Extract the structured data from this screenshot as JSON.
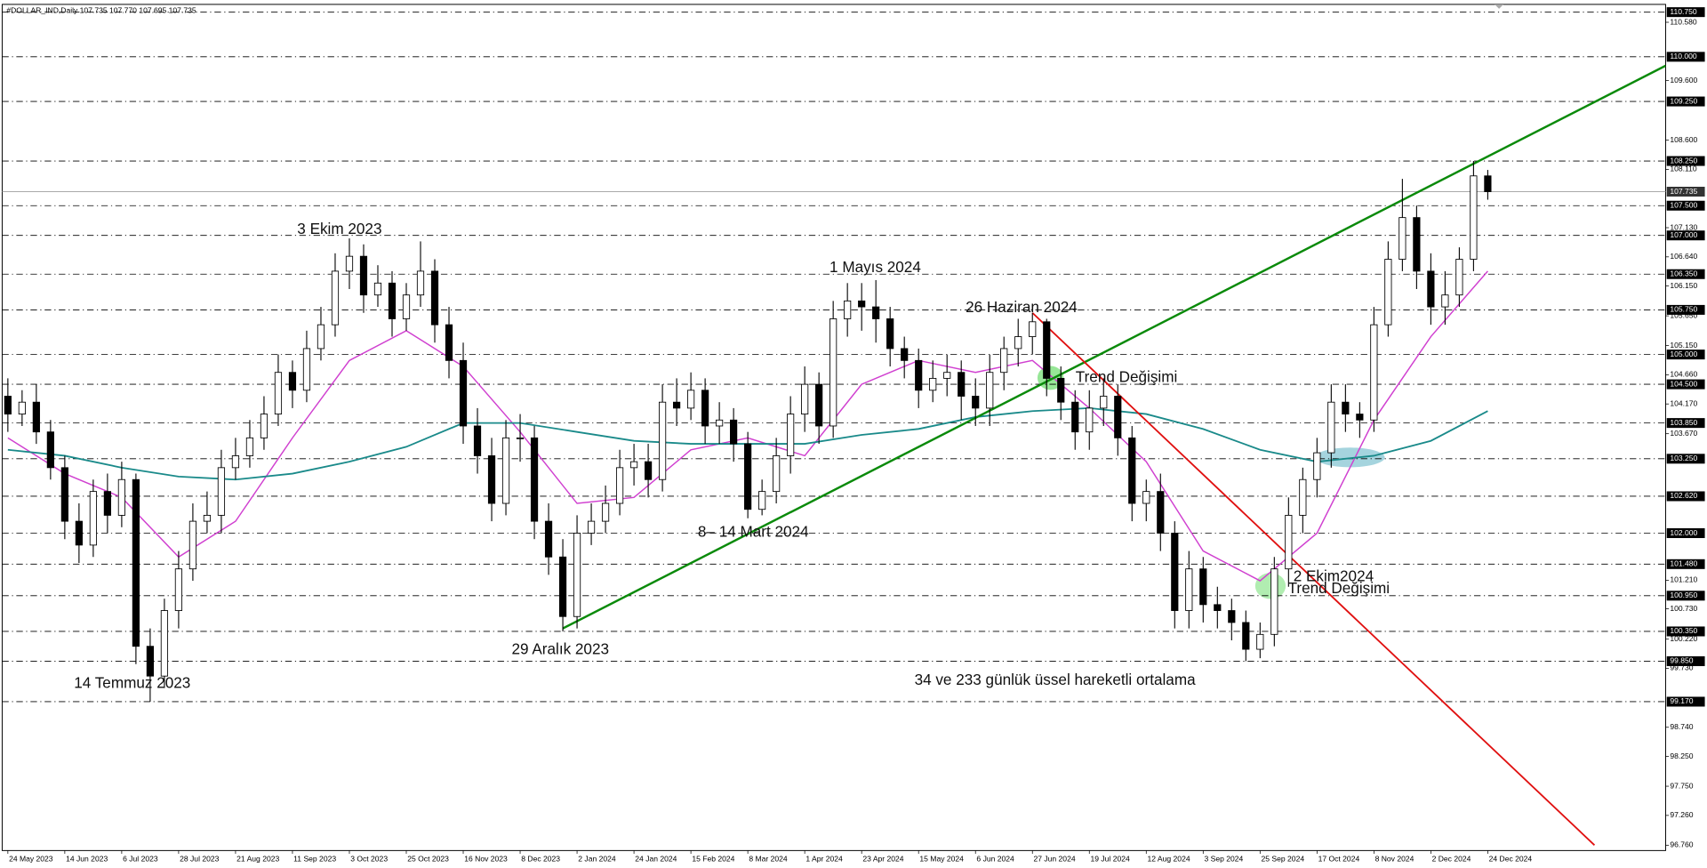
{
  "chart_data": {
    "type": "candlestick",
    "title": "#DOLLAR_IND,Daily  107.735 107.770 107.695 107.735",
    "xlim": [
      -0.4,
      116.5
    ],
    "ylim": [
      96.67,
      110.88
    ],
    "xticks": [
      {
        "value": 0,
        "label": "24 May 2023"
      },
      {
        "value": 4,
        "label": "14 Jun 2023"
      },
      {
        "value": 8,
        "label": "6 Jul 2023"
      },
      {
        "value": 12,
        "label": "28 Jul 2023"
      },
      {
        "value": 16,
        "label": "21 Aug 2023"
      },
      {
        "value": 20,
        "label": "11 Sep 2023"
      },
      {
        "value": 24,
        "label": "3 Oct 2023"
      },
      {
        "value": 28,
        "label": "25 Oct 2023"
      },
      {
        "value": 32,
        "label": "16 Nov 2023"
      },
      {
        "value": 36,
        "label": "8 Dec 2023"
      },
      {
        "value": 40,
        "label": "2 Jan 2024"
      },
      {
        "value": 44,
        "label": "24 Jan 2024"
      },
      {
        "value": 48,
        "label": "15 Feb 2024"
      },
      {
        "value": 52,
        "label": "8 Mar 2024"
      },
      {
        "value": 56,
        "label": "1 Apr 2024"
      },
      {
        "value": 60,
        "label": "23 Apr 2024"
      },
      {
        "value": 64,
        "label": "15 May 2024"
      },
      {
        "value": 68,
        "label": "6 Jun 2024"
      },
      {
        "value": 72,
        "label": "27 Jun 2024"
      },
      {
        "value": 76,
        "label": "19 Jul 2024"
      },
      {
        "value": 80,
        "label": "12 Aug 2024"
      },
      {
        "value": 84,
        "label": "3 Sep 2024"
      },
      {
        "value": 88,
        "label": "25 Sep 2024"
      },
      {
        "value": 92,
        "label": "17 Oct 2024"
      },
      {
        "value": 96,
        "label": "8 Nov 2024"
      },
      {
        "value": 100,
        "label": "2 Dec 2024"
      },
      {
        "value": 104,
        "label": "24 Dec 2024"
      }
    ],
    "yticks": [
      {
        "value": 110.58,
        "label": "110.580"
      },
      {
        "value": 109.6,
        "label": "109.600"
      },
      {
        "value": 108.6,
        "label": "108.600"
      },
      {
        "value": 108.11,
        "label": "108.110"
      },
      {
        "value": 107.13,
        "label": "107.130"
      },
      {
        "value": 106.64,
        "label": "106.640"
      },
      {
        "value": 106.15,
        "label": "106.150"
      },
      {
        "value": 105.65,
        "label": "105.650"
      },
      {
        "value": 105.15,
        "label": "105.150"
      },
      {
        "value": 104.66,
        "label": "104.660"
      },
      {
        "value": 104.17,
        "label": "104.170"
      },
      {
        "value": 103.67,
        "label": "103.670"
      },
      {
        "value": 101.21,
        "label": "101.210"
      },
      {
        "value": 100.73,
        "label": "100.730"
      },
      {
        "value": 100.22,
        "label": "100.220"
      },
      {
        "value": 99.73,
        "label": "99.730"
      },
      {
        "value": 98.74,
        "label": "98.740"
      },
      {
        "value": 98.25,
        "label": "98.250"
      },
      {
        "value": 97.75,
        "label": "97.750"
      },
      {
        "value": 97.26,
        "label": "97.260"
      },
      {
        "value": 96.76,
        "label": "96.760"
      }
    ],
    "levels": [
      {
        "value": 110.75,
        "label": "110.750"
      },
      {
        "value": 110,
        "label": "110.000"
      },
      {
        "value": 109.25,
        "label": "109.250"
      },
      {
        "value": 108.25,
        "label": "108.250"
      },
      {
        "value": 107.5,
        "label": "107.500"
      },
      {
        "value": 107,
        "label": "107.000"
      },
      {
        "value": 106.35,
        "label": "106.350"
      },
      {
        "value": 105.75,
        "label": "105.750"
      },
      {
        "value": 105,
        "label": "105.000"
      },
      {
        "value": 104.5,
        "label": "104.500"
      },
      {
        "value": 103.85,
        "label": "103.850"
      },
      {
        "value": 103.25,
        "label": "103.250"
      },
      {
        "value": 102.62,
        "label": "102.620"
      },
      {
        "value": 102,
        "label": "102.000"
      },
      {
        "value": 101.48,
        "label": "101.480"
      },
      {
        "value": 100.95,
        "label": "100.950"
      },
      {
        "value": 100.35,
        "label": "100.350"
      },
      {
        "value": 99.85,
        "label": "99.850"
      },
      {
        "value": 99.17,
        "label": "99.170"
      }
    ],
    "price_line": {
      "value": 107.735,
      "label": "107.735"
    },
    "open": [
      104.3,
      104.0,
      104.2,
      103.7,
      103.1,
      102.2,
      101.8,
      102.7,
      102.3,
      102.9,
      100.1,
      99.6,
      100.7,
      101.4,
      102.2,
      102.3,
      103.1,
      103.3,
      103.6,
      104.0,
      104.7,
      104.4,
      105.1,
      105.5,
      106.4,
      106.65,
      106.0,
      106.2,
      105.6,
      106.0,
      106.4,
      105.5,
      104.9,
      103.8,
      103.3,
      102.5,
      103.6,
      103.6,
      102.2,
      101.6,
      100.6,
      102.0,
      102.2,
      102.5,
      103.1,
      103.2,
      102.9,
      104.2,
      104.1,
      104.4,
      103.8,
      103.9,
      103.5,
      102.4,
      102.7,
      103.3,
      104.0,
      104.5,
      103.8,
      105.6,
      105.9,
      105.8,
      105.6,
      105.1,
      104.9,
      104.4,
      104.6,
      104.7,
      104.3,
      104.1,
      104.7,
      105.1,
      105.3,
      105.55,
      104.6,
      104.2,
      103.7,
      104.1,
      104.3,
      103.6,
      102.5,
      102.7,
      102.0,
      100.7,
      101.4,
      100.8,
      100.7,
      100.5,
      100.05,
      100.3,
      101.4,
      102.3,
      102.9,
      103.35,
      104.2,
      104.0,
      103.9,
      105.5,
      106.6,
      107.3,
      106.4,
      105.8,
      106.0,
      106.6,
      108.0
    ],
    "high": [
      104.6,
      104.4,
      104.5,
      103.9,
      103.3,
      102.5,
      102.9,
      103.0,
      103.2,
      103.0,
      100.4,
      100.9,
      101.7,
      102.5,
      102.7,
      103.4,
      103.6,
      103.9,
      104.3,
      105.0,
      104.9,
      105.4,
      105.8,
      106.7,
      106.95,
      106.85,
      106.5,
      106.4,
      106.2,
      106.9,
      106.6,
      105.8,
      105.2,
      104.1,
      103.6,
      103.9,
      104.0,
      103.8,
      102.5,
      101.9,
      102.3,
      102.5,
      102.8,
      103.4,
      103.5,
      103.5,
      104.5,
      104.6,
      104.7,
      104.6,
      104.2,
      104.1,
      103.7,
      102.9,
      103.6,
      104.3,
      104.8,
      104.7,
      105.9,
      106.2,
      106.2,
      106.25,
      105.8,
      105.3,
      105.1,
      104.9,
      105.0,
      104.9,
      104.6,
      105.0,
      105.3,
      105.6,
      105.7,
      105.6,
      104.8,
      104.4,
      104.4,
      104.6,
      104.5,
      103.8,
      102.9,
      103.0,
      102.2,
      101.7,
      101.6,
      101.1,
      100.9,
      100.7,
      100.5,
      101.6,
      102.6,
      103.1,
      103.6,
      104.5,
      104.5,
      104.2,
      105.8,
      106.9,
      107.95,
      107.5,
      106.7,
      106.4,
      106.8,
      108.25,
      108.1
    ],
    "low": [
      103.7,
      103.8,
      103.5,
      102.9,
      101.9,
      101.5,
      101.6,
      102.0,
      102.1,
      99.8,
      99.17,
      99.4,
      100.4,
      101.2,
      102.0,
      102.0,
      102.9,
      103.1,
      103.4,
      103.8,
      104.1,
      104.2,
      104.9,
      105.3,
      106.1,
      105.7,
      105.8,
      105.3,
      105.4,
      105.8,
      105.2,
      104.6,
      103.5,
      103.0,
      102.2,
      102.3,
      103.2,
      101.9,
      101.3,
      100.35,
      100.4,
      101.8,
      102.0,
      102.3,
      102.8,
      102.6,
      102.7,
      103.8,
      103.9,
      103.5,
      103.5,
      103.2,
      102.25,
      102.3,
      102.5,
      103.0,
      103.7,
      103.5,
      103.6,
      105.3,
      105.4,
      105.2,
      104.8,
      104.6,
      104.1,
      104.2,
      104.3,
      103.9,
      103.8,
      103.8,
      104.4,
      104.8,
      105.0,
      104.3,
      103.9,
      103.4,
      103.4,
      103.8,
      103.3,
      102.2,
      102.2,
      101.7,
      100.4,
      100.4,
      100.5,
      100.4,
      100.2,
      99.85,
      99.9,
      100.1,
      101.1,
      102.0,
      102.6,
      103.1,
      103.7,
      103.6,
      103.7,
      105.3,
      106.4,
      106.1,
      105.5,
      105.5,
      105.8,
      106.4,
      107.6
    ],
    "close": [
      104.0,
      104.2,
      103.7,
      103.1,
      102.2,
      101.8,
      102.7,
      102.3,
      102.9,
      100.1,
      99.6,
      100.7,
      101.4,
      102.2,
      102.3,
      103.1,
      103.3,
      103.6,
      104.0,
      104.7,
      104.4,
      105.1,
      105.5,
      106.4,
      106.65,
      106.0,
      106.2,
      105.6,
      106.0,
      106.4,
      105.5,
      104.9,
      103.8,
      103.3,
      102.5,
      103.6,
      103.6,
      102.2,
      101.6,
      100.6,
      102.0,
      102.2,
      102.5,
      103.1,
      103.2,
      102.9,
      104.2,
      104.1,
      104.4,
      103.8,
      103.9,
      103.5,
      102.4,
      102.7,
      103.3,
      104.0,
      104.5,
      103.8,
      105.6,
      105.9,
      105.8,
      105.6,
      105.1,
      104.9,
      104.4,
      104.6,
      104.7,
      104.3,
      104.1,
      104.7,
      105.1,
      105.3,
      105.55,
      104.6,
      104.2,
      103.7,
      104.1,
      104.3,
      103.6,
      102.5,
      102.7,
      102.0,
      100.7,
      101.4,
      100.8,
      100.7,
      100.5,
      100.05,
      100.3,
      101.4,
      102.3,
      102.9,
      103.35,
      104.2,
      104.0,
      103.9,
      105.5,
      106.6,
      107.3,
      106.4,
      105.8,
      106.0,
      106.6,
      108.0,
      107.735
    ],
    "overlays": [
      {
        "color": "#d040d0",
        "width": 1.2,
        "x": [
          0,
          4,
          8,
          12,
          16,
          20,
          24,
          28,
          32,
          36,
          40,
          44,
          48,
          52,
          56,
          60,
          64,
          68,
          72,
          76,
          80,
          84,
          88,
          92,
          96,
          100,
          104
        ],
        "values": [
          103.6,
          103.0,
          102.6,
          101.6,
          102.2,
          103.6,
          104.9,
          105.4,
          104.8,
          103.7,
          102.5,
          102.6,
          103.4,
          103.6,
          103.3,
          104.5,
          104.9,
          104.7,
          104.9,
          104.1,
          103.2,
          101.7,
          101.2,
          102.0,
          103.9,
          105.3,
          106.4
        ]
      },
      {
        "color": "#1a8a8a",
        "width": 1.5,
        "x": [
          0,
          4,
          8,
          12,
          16,
          20,
          24,
          28,
          32,
          36,
          40,
          44,
          48,
          52,
          56,
          60,
          64,
          68,
          72,
          76,
          80,
          84,
          88,
          92,
          96,
          100,
          104
        ],
        "values": [
          103.4,
          103.3,
          103.1,
          102.95,
          102.9,
          103.0,
          103.2,
          103.45,
          103.85,
          103.85,
          103.7,
          103.55,
          103.5,
          103.5,
          103.5,
          103.65,
          103.75,
          103.95,
          104.05,
          104.1,
          104.0,
          103.75,
          103.4,
          103.2,
          103.3,
          103.55,
          104.05
        ]
      },
      {
        "color": "#0a8a0a",
        "width": 2,
        "x": [
          39,
          116.5
        ],
        "values": [
          100.4,
          109.85
        ]
      },
      {
        "color": "#e01010",
        "width": 1.5,
        "x": [
          72,
          111.5
        ],
        "values": [
          105.7,
          96.76
        ]
      }
    ],
    "annotations": [
      "3 Ekim 2023",
      "1 Mayıs 2024",
      "26 Haziran 2024",
      "Trend Değişimi",
      "8– 14 Mart 2024",
      "2 Ekim2024",
      "Trend Değişimi",
      "29 Aralık 2023",
      "14 Temmuz 2023",
      "34 ve 233 günlük üssel hareketli ortalama"
    ]
  }
}
